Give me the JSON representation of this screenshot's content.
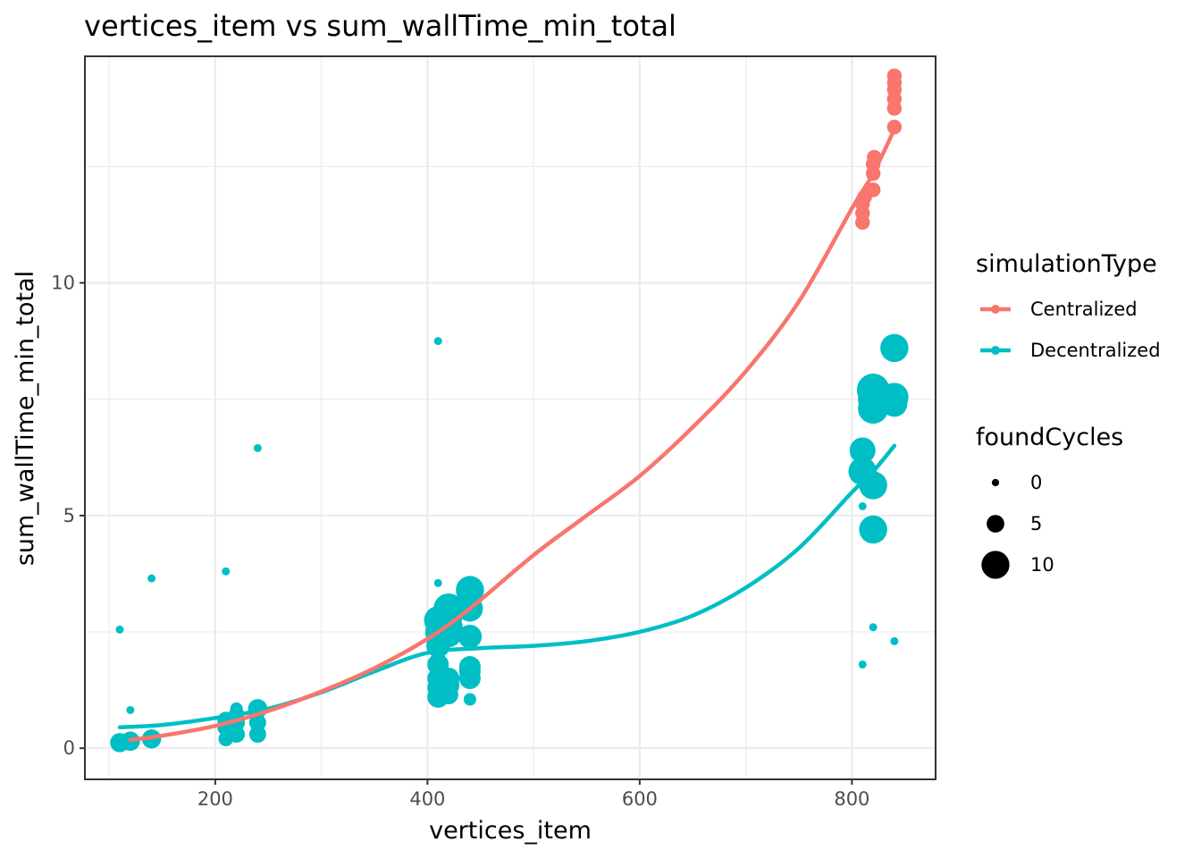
{
  "chart_data": {
    "type": "scatter",
    "title": "vertices_item  vs  sum_wallTime_min_total",
    "xlabel": "vertices_item",
    "ylabel": "sum_wallTime_min_total",
    "xlim": [
      78,
      878
    ],
    "ylim": [
      -0.65,
      14.85
    ],
    "x_ticks": [
      200,
      400,
      600,
      800
    ],
    "y_ticks": [
      0,
      5,
      10
    ],
    "grid": true,
    "legend_placement": "right",
    "colors": {
      "Centralized": "#F8766D",
      "Decentralized": "#00BFC4"
    },
    "legend": {
      "color_title": "simulationType",
      "color_entries": [
        "Centralized",
        "Decentralized"
      ],
      "size_title": "foundCycles",
      "size_entries": [
        0,
        5,
        10
      ]
    },
    "series": [
      {
        "name": "Centralized",
        "color": "#F8766D",
        "points": [
          [
            110,
            0.15,
            2
          ],
          [
            120,
            0.2,
            3
          ],
          [
            140,
            0.25,
            2
          ],
          [
            210,
            0.6,
            3
          ],
          [
            220,
            0.7,
            3
          ],
          [
            240,
            0.85,
            3
          ],
          [
            440,
            3.35,
            3
          ],
          [
            810,
            11.3,
            3
          ],
          [
            810,
            11.5,
            3
          ],
          [
            810,
            11.7,
            3
          ],
          [
            812,
            11.85,
            3
          ],
          [
            820,
            12.0,
            3
          ],
          [
            820,
            12.35,
            3
          ],
          [
            820,
            12.55,
            3
          ],
          [
            821,
            12.7,
            3
          ],
          [
            840,
            13.35,
            3
          ],
          [
            840,
            13.75,
            3
          ],
          [
            840,
            13.95,
            3
          ],
          [
            840,
            14.15,
            3
          ],
          [
            840,
            14.3,
            3
          ],
          [
            840,
            14.45,
            3
          ]
        ],
        "smooth": [
          [
            120,
            0.18
          ],
          [
            150,
            0.27
          ],
          [
            200,
            0.48
          ],
          [
            250,
            0.8
          ],
          [
            300,
            1.22
          ],
          [
            350,
            1.72
          ],
          [
            400,
            2.35
          ],
          [
            440,
            3.0
          ],
          [
            500,
            4.15
          ],
          [
            550,
            5.0
          ],
          [
            600,
            5.85
          ],
          [
            650,
            6.9
          ],
          [
            700,
            8.1
          ],
          [
            750,
            9.6
          ],
          [
            800,
            11.6
          ],
          [
            820,
            12.35
          ],
          [
            840,
            13.3
          ]
        ]
      },
      {
        "name": "Decentralized",
        "color": "#00BFC4",
        "points": [
          [
            110,
            2.55,
            0
          ],
          [
            110,
            0.12,
            5
          ],
          [
            120,
            0.82,
            0
          ],
          [
            120,
            0.15,
            5
          ],
          [
            140,
            3.65,
            0
          ],
          [
            140,
            0.2,
            5
          ],
          [
            210,
            3.8,
            0
          ],
          [
            210,
            0.2,
            3
          ],
          [
            210,
            0.45,
            4
          ],
          [
            210,
            0.6,
            4
          ],
          [
            220,
            0.3,
            4
          ],
          [
            220,
            0.55,
            4
          ],
          [
            220,
            0.75,
            3
          ],
          [
            220,
            0.85,
            2
          ],
          [
            240,
            6.45,
            0
          ],
          [
            240,
            0.3,
            4
          ],
          [
            240,
            0.55,
            4
          ],
          [
            240,
            0.85,
            5
          ],
          [
            410,
            8.75,
            0
          ],
          [
            410,
            3.55,
            0
          ],
          [
            410,
            1.1,
            6
          ],
          [
            410,
            1.3,
            6
          ],
          [
            410,
            1.5,
            6
          ],
          [
            410,
            1.8,
            6
          ],
          [
            410,
            2.2,
            7
          ],
          [
            410,
            2.5,
            8
          ],
          [
            410,
            2.75,
            9
          ],
          [
            420,
            1.15,
            5
          ],
          [
            420,
            1.35,
            6
          ],
          [
            420,
            1.5,
            6
          ],
          [
            420,
            2.45,
            8
          ],
          [
            420,
            2.6,
            9
          ],
          [
            420,
            2.85,
            9
          ],
          [
            420,
            3.0,
            10
          ],
          [
            440,
            1.05,
            2
          ],
          [
            440,
            1.5,
            6
          ],
          [
            440,
            1.65,
            6
          ],
          [
            440,
            1.75,
            6
          ],
          [
            440,
            2.4,
            7
          ],
          [
            440,
            3.0,
            8
          ],
          [
            440,
            3.4,
            9
          ],
          [
            810,
            5.2,
            0
          ],
          [
            810,
            1.8,
            0
          ],
          [
            810,
            5.95,
            9
          ],
          [
            810,
            6.4,
            8
          ],
          [
            820,
            2.6,
            0
          ],
          [
            820,
            4.7,
            9
          ],
          [
            820,
            5.65,
            9
          ],
          [
            820,
            7.3,
            10
          ],
          [
            820,
            7.5,
            10
          ],
          [
            820,
            7.7,
            11
          ],
          [
            840,
            2.3,
            0
          ],
          [
            840,
            7.4,
            8
          ],
          [
            840,
            7.55,
            9
          ],
          [
            840,
            8.6,
            9
          ]
        ],
        "smooth": [
          [
            110,
            0.45
          ],
          [
            150,
            0.5
          ],
          [
            200,
            0.65
          ],
          [
            250,
            0.85
          ],
          [
            300,
            1.2
          ],
          [
            350,
            1.65
          ],
          [
            400,
            2.05
          ],
          [
            450,
            2.15
          ],
          [
            500,
            2.2
          ],
          [
            550,
            2.3
          ],
          [
            600,
            2.5
          ],
          [
            650,
            2.85
          ],
          [
            700,
            3.45
          ],
          [
            750,
            4.3
          ],
          [
            800,
            5.5
          ],
          [
            820,
            5.95
          ],
          [
            840,
            6.5
          ]
        ]
      }
    ]
  }
}
